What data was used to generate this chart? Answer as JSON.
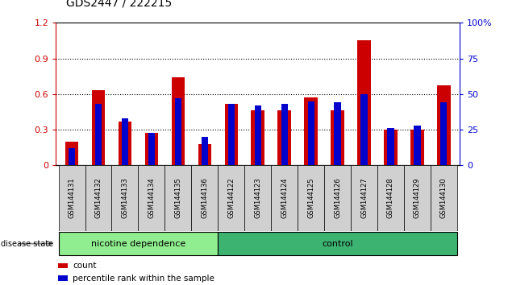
{
  "title": "GDS2447 / 222215",
  "samples": [
    "GSM144131",
    "GSM144132",
    "GSM144133",
    "GSM144134",
    "GSM144135",
    "GSM144136",
    "GSM144122",
    "GSM144123",
    "GSM144124",
    "GSM144125",
    "GSM144126",
    "GSM144127",
    "GSM144128",
    "GSM144129",
    "GSM144130"
  ],
  "count_values": [
    0.2,
    0.63,
    0.37,
    0.27,
    0.74,
    0.18,
    0.52,
    0.46,
    0.46,
    0.57,
    0.46,
    1.05,
    0.3,
    0.3,
    0.67
  ],
  "percentile_values": [
    12,
    43,
    33,
    23,
    47,
    20,
    43,
    42,
    43,
    45,
    44,
    50,
    26,
    28,
    44
  ],
  "groups": [
    {
      "label": "nicotine dependence",
      "start": 0,
      "end": 6,
      "color": "#90EE90"
    },
    {
      "label": "control",
      "start": 6,
      "end": 15,
      "color": "#3CB371"
    }
  ],
  "disease_state_label": "disease state",
  "left_ylim": [
    0,
    1.2
  ],
  "left_yticks": [
    0,
    0.3,
    0.6,
    0.9,
    1.2
  ],
  "right_ylim": [
    0,
    100
  ],
  "right_yticks": [
    0,
    25,
    50,
    75,
    100
  ],
  "right_ytick_labels": [
    "0",
    "25",
    "50",
    "75",
    "100%"
  ],
  "bar_color_red": "#CC0000",
  "bar_color_blue": "#0000CC",
  "grid_color": "#000000",
  "legend_count_label": "count",
  "legend_percentile_label": "percentile rank within the sample",
  "red_bar_width": 0.5,
  "blue_bar_width": 0.25
}
